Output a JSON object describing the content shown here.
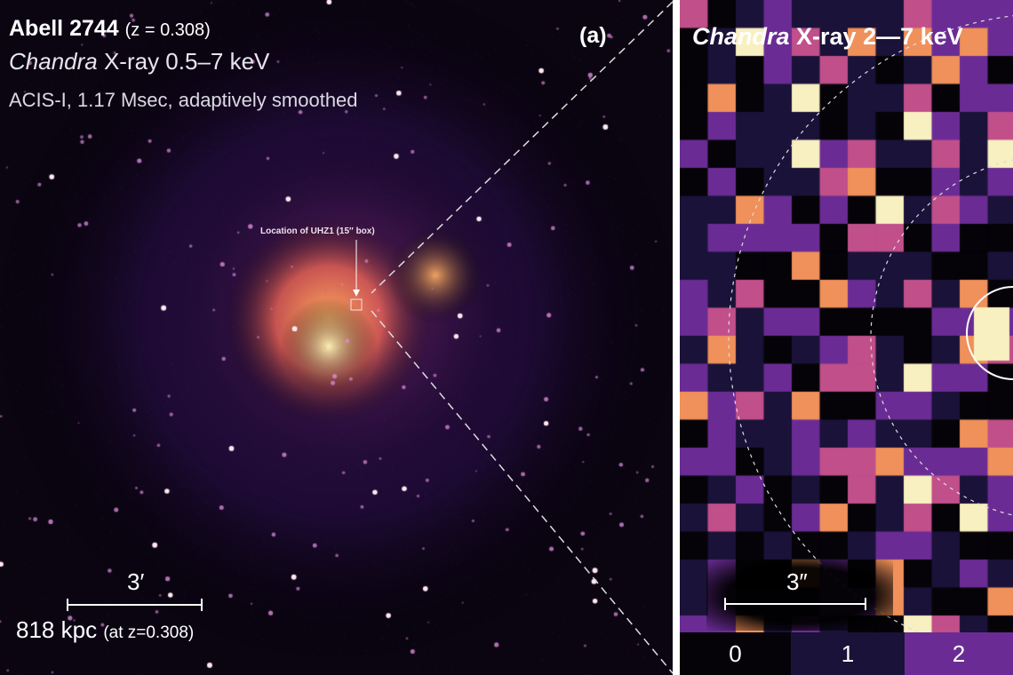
{
  "left_panel": {
    "title": "Abell 2744",
    "redshift": "(z = 0.308)",
    "instrument_italic": "Chandra",
    "instrument_rest": " X-ray 0.5–7 keV",
    "details": "ACIS-I, 1.17 Msec, adaptively smoothed",
    "panel_label": "(a)",
    "annotation": "Location of UHZ1 (15″ box)",
    "scale_angle": "3′",
    "scale_distance": "818 kpc",
    "scale_note": "(at z=0.308)"
  },
  "right_panel": {
    "title_italic": "Chandra",
    "title_rest": " X-ray 2—7 keV",
    "scale_angle": "3″",
    "colorbar": [
      {
        "label": "0",
        "color": "#050308"
      },
      {
        "label": "1",
        "color": "#1a1238"
      },
      {
        "label": "2",
        "color": "#6a2c94"
      }
    ]
  },
  "colors": {
    "pixel_palette": [
      "#050308",
      "#1a1238",
      "#6a2c94",
      "#c04f8a",
      "#f0905a",
      "#f8f0c0"
    ]
  }
}
